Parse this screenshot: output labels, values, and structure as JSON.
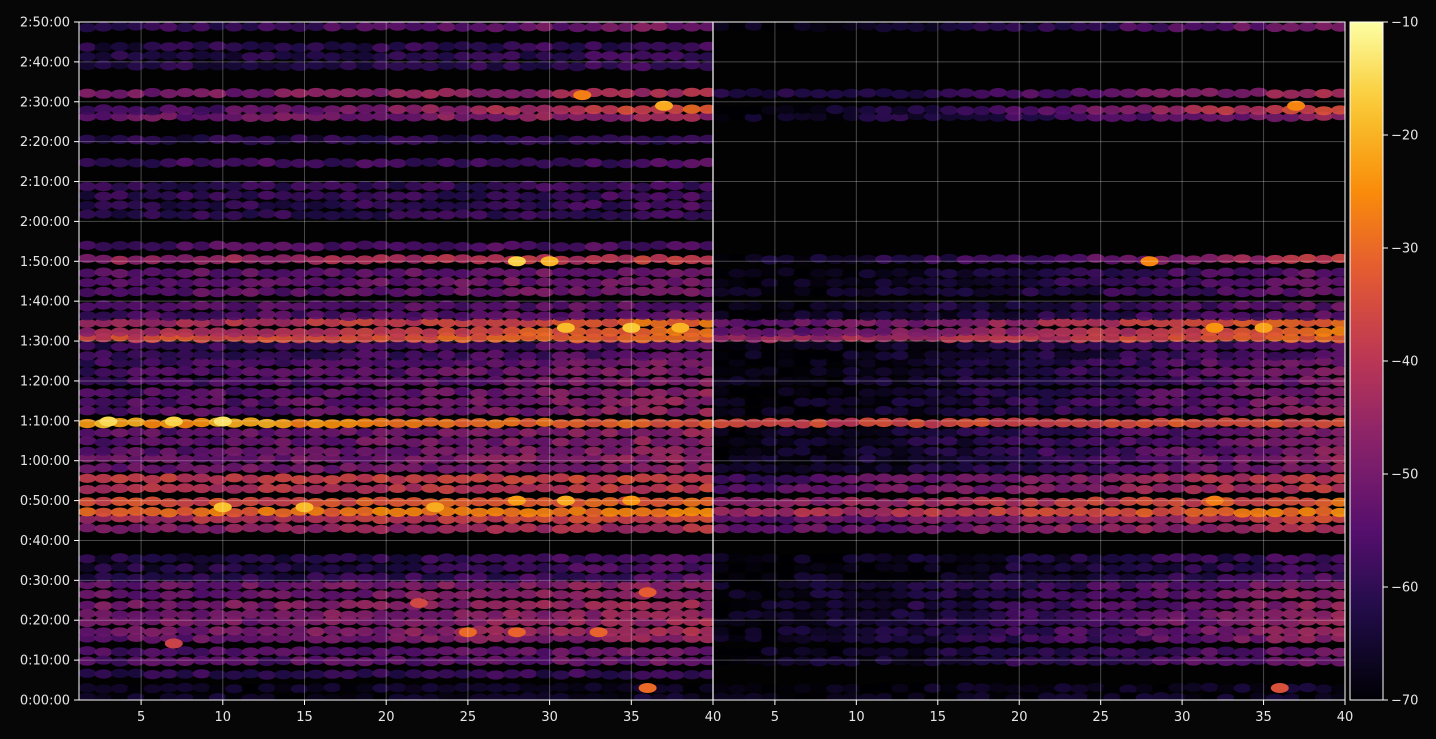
{
  "chart_data": {
    "type": "heatmap",
    "title": "",
    "xlabel": "",
    "ylabel": "",
    "grid": true,
    "colormap": "inferno",
    "panels": [
      {
        "name": "",
        "xlim": [
          1.2,
          40
        ],
        "xticks": [
          "5",
          "10",
          "15",
          "20",
          "25",
          "30",
          "35",
          "40"
        ],
        "xtick_values": [
          5,
          10,
          15,
          20,
          25,
          30,
          35,
          40
        ]
      },
      {
        "name": "",
        "xlim": [
          1.2,
          40
        ],
        "xticks": [
          "5",
          "10",
          "15",
          "20",
          "25",
          "30",
          "35",
          "40"
        ],
        "xtick_values": [
          5,
          10,
          15,
          20,
          25,
          30,
          35,
          40
        ]
      }
    ],
    "y_range_seconds": [
      0,
      10200
    ],
    "yticks": [
      "0:00:00",
      "0:10:00",
      "0:20:00",
      "0:30:00",
      "0:40:00",
      "0:50:00",
      "1:00:00",
      "1:10:00",
      "1:20:00",
      "1:30:00",
      "1:40:00",
      "1:50:00",
      "2:00:00",
      "2:10:00",
      "2:20:00",
      "2:30:00",
      "2:40:00",
      "2:50:00"
    ],
    "ytick_values": [
      0,
      600,
      1200,
      1800,
      2400,
      3000,
      3600,
      4200,
      4800,
      5400,
      6000,
      6600,
      7200,
      7800,
      8400,
      9000,
      9600,
      10200
    ],
    "colorbar": {
      "min": -70,
      "max": -10,
      "ticks": [
        "−70",
        "−60",
        "−50",
        "−40",
        "−30",
        "−20",
        "−10"
      ],
      "tick_values": [
        -70,
        -60,
        -50,
        -40,
        -30,
        -20,
        -10
      ]
    },
    "bands_left": [
      {
        "t": [
          0,
          250
        ],
        "v": -67,
        "r": -66
      },
      {
        "t": [
          250,
          460
        ],
        "v": -60,
        "r": -59
      },
      {
        "t": [
          500,
          800
        ],
        "v": -56,
        "r": -50
      },
      {
        "t": [
          800,
          1000
        ],
        "v": -53,
        "r": -45
      },
      {
        "t": [
          1000,
          1250
        ],
        "v": -51,
        "r": -43
      },
      {
        "t": [
          1250,
          1500
        ],
        "v": -50,
        "r": -44
      },
      {
        "t": [
          1500,
          1800
        ],
        "v": -52,
        "r": -46
      },
      {
        "t": [
          1820,
          2200
        ],
        "v": -63,
        "r": -55
      },
      {
        "t": [
          2450,
          2650
        ],
        "v": -48,
        "r": -40
      },
      {
        "t": [
          2650,
          2800
        ],
        "v": -42,
        "r": -35
      },
      {
        "t": [
          2800,
          2900
        ],
        "v": -30,
        "r": -27
      },
      {
        "t": [
          2900,
          3050
        ],
        "v": -36,
        "r": -30
      },
      {
        "t": [
          3050,
          3250
        ],
        "v": -42,
        "r": -38
      },
      {
        "t": [
          3250,
          3400
        ],
        "v": -39,
        "r": -36
      },
      {
        "t": [
          3400,
          3700
        ],
        "v": -52,
        "r": -46
      },
      {
        "t": [
          3700,
          4100
        ],
        "v": -54,
        "r": -46
      },
      {
        "t": [
          4140,
          4240
        ],
        "v": -22,
        "r": -33
      },
      {
        "t": [
          4240,
          4700
        ],
        "v": -56,
        "r": -46
      },
      {
        "t": [
          4700,
          5150
        ],
        "v": -58,
        "r": -48
      },
      {
        "t": [
          5150,
          5400
        ],
        "v": -60,
        "r": -54
      },
      {
        "t": [
          5400,
          5520
        ],
        "v": -36,
        "r": -30
      },
      {
        "t": [
          5520,
          5750
        ],
        "v": -44,
        "r": -28
      },
      {
        "t": [
          5750,
          6000
        ],
        "v": -56,
        "r": -53
      },
      {
        "t": [
          6050,
          6500
        ],
        "v": -54,
        "r": -50
      },
      {
        "t": [
          6500,
          6700
        ],
        "v": -46,
        "r": -38
      },
      {
        "t": [
          6700,
          6900
        ],
        "v": -56,
        "r": -55
      },
      {
        "t": [
          7200,
          7800
        ],
        "v": -61,
        "r": -57
      },
      {
        "t": [
          7950,
          8150
        ],
        "v": -58,
        "r": -56
      },
      {
        "t": [
          8350,
          8500
        ],
        "v": -62,
        "r": -60
      },
      {
        "t": [
          8650,
          8850
        ],
        "v": -52,
        "r": -44
      },
      {
        "t": [
          8850,
          8950
        ],
        "v": -58,
        "r": -32
      },
      {
        "t": [
          9000,
          9200
        ],
        "v": -50,
        "r": -42
      },
      {
        "t": [
          9500,
          9900
        ],
        "v": -62,
        "r": -58
      },
      {
        "t": [
          10050,
          10200
        ],
        "v": -60,
        "r": -48
      }
    ],
    "bands_right": [
      {
        "t": [
          0,
          250
        ],
        "v": -69,
        "r": -66
      },
      {
        "t": [
          500,
          800
        ],
        "v": -68,
        "r": -50
      },
      {
        "t": [
          800,
          1000
        ],
        "v": -68,
        "r": -45
      },
      {
        "t": [
          1000,
          1250
        ],
        "v": -68,
        "r": -43
      },
      {
        "t": [
          1250,
          1500
        ],
        "v": -68,
        "r": -44
      },
      {
        "t": [
          1500,
          1800
        ],
        "v": -68,
        "r": -46
      },
      {
        "t": [
          1820,
          2200
        ],
        "v": -69,
        "r": -56
      },
      {
        "t": [
          2450,
          2650
        ],
        "v": -54,
        "r": -40
      },
      {
        "t": [
          2650,
          2800
        ],
        "v": -55,
        "r": -35
      },
      {
        "t": [
          2800,
          2900
        ],
        "v": -44,
        "r": -27
      },
      {
        "t": [
          2900,
          3050
        ],
        "v": -47,
        "r": -30
      },
      {
        "t": [
          3050,
          3250
        ],
        "v": -54,
        "r": -38
      },
      {
        "t": [
          3250,
          3400
        ],
        "v": -57,
        "r": -36
      },
      {
        "t": [
          3400,
          3700
        ],
        "v": -68,
        "r": -46
      },
      {
        "t": [
          3700,
          4100
        ],
        "v": -68,
        "r": -47
      },
      {
        "t": [
          4140,
          4240
        ],
        "v": -37,
        "r": -33
      },
      {
        "t": [
          4240,
          4700
        ],
        "v": -69,
        "r": -47
      },
      {
        "t": [
          4700,
          5150
        ],
        "v": -69,
        "r": -49
      },
      {
        "t": [
          5150,
          5400
        ],
        "v": -69,
        "r": -54
      },
      {
        "t": [
          5400,
          5520
        ],
        "v": -45,
        "r": -30
      },
      {
        "t": [
          5520,
          5750
        ],
        "v": -54,
        "r": -28
      },
      {
        "t": [
          5750,
          6000
        ],
        "v": -68,
        "r": -53
      },
      {
        "t": [
          6050,
          6500
        ],
        "v": -69,
        "r": -52
      },
      {
        "t": [
          6500,
          6700
        ],
        "v": -67,
        "r": -38
      },
      {
        "t": [
          8650,
          8850
        ],
        "v": -68,
        "r": -44
      },
      {
        "t": [
          8850,
          8950
        ],
        "v": -69,
        "r": -32
      },
      {
        "t": [
          9000,
          9200
        ],
        "v": -64,
        "r": -42
      },
      {
        "t": [
          10050,
          10200
        ],
        "v": -69,
        "r": -48
      }
    ],
    "hotspots_left": [
      {
        "x": 36,
        "t": 180,
        "v": -30
      },
      {
        "x": 7,
        "t": 850,
        "v": -37
      },
      {
        "x": 25,
        "t": 1020,
        "v": -30
      },
      {
        "x": 28,
        "t": 1020,
        "v": -31
      },
      {
        "x": 33,
        "t": 1020,
        "v": -31
      },
      {
        "x": 22,
        "t": 1460,
        "v": -36
      },
      {
        "x": 36,
        "t": 1620,
        "v": -32
      },
      {
        "x": 23,
        "t": 2900,
        "v": -21
      },
      {
        "x": 31,
        "t": 3000,
        "v": -21
      },
      {
        "x": 28,
        "t": 3000,
        "v": -23
      },
      {
        "x": 35,
        "t": 3000,
        "v": -24
      },
      {
        "x": 10,
        "t": 2900,
        "v": -18
      },
      {
        "x": 15,
        "t": 2900,
        "v": -19
      },
      {
        "x": 3,
        "t": 4190,
        "v": -15
      },
      {
        "x": 10,
        "t": 4190,
        "v": -14
      },
      {
        "x": 7,
        "t": 4190,
        "v": -16
      },
      {
        "x": 35,
        "t": 5600,
        "v": -17
      },
      {
        "x": 31,
        "t": 5600,
        "v": -19
      },
      {
        "x": 38,
        "t": 5600,
        "v": -20
      },
      {
        "x": 28,
        "t": 6600,
        "v": -16
      },
      {
        "x": 30,
        "t": 6600,
        "v": -20
      },
      {
        "x": 37,
        "t": 8940,
        "v": -21
      },
      {
        "x": 32,
        "t": 9100,
        "v": -27
      }
    ],
    "hotspots_right": [
      {
        "x": 36,
        "t": 180,
        "v": -34
      },
      {
        "x": 35,
        "t": 5600,
        "v": -22
      },
      {
        "x": 32,
        "t": 5600,
        "v": -24
      },
      {
        "x": 28,
        "t": 6600,
        "v": -26
      },
      {
        "x": 32,
        "t": 3000,
        "v": -27
      },
      {
        "x": 37,
        "t": 8940,
        "v": -26
      }
    ]
  }
}
